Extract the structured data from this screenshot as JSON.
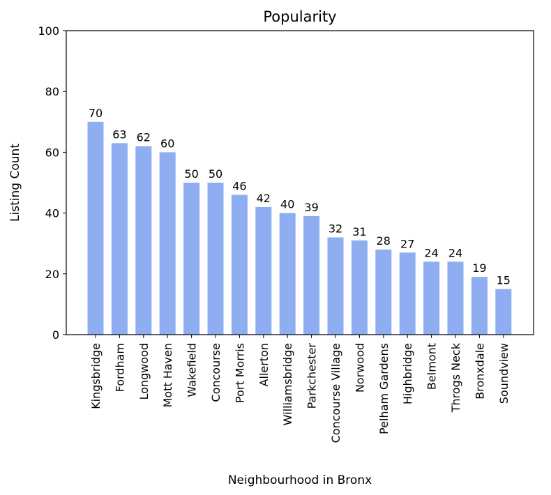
{
  "chart_data": {
    "type": "bar",
    "title": "Popularity",
    "xlabel": "Neighbourhood in Bronx",
    "ylabel": "Listing Count",
    "ylim": [
      0,
      100
    ],
    "yticks": [
      "0",
      "20",
      "40",
      "60",
      "80",
      "100"
    ],
    "grid": false,
    "bar_color": "#8eaef1",
    "categories": [
      "Kingsbridge",
      "Fordham",
      "Longwood",
      "Mott Haven",
      "Wakefield",
      "Concourse",
      "Port Morris",
      "Allerton",
      "Williamsbridge",
      "Parkchester",
      "Concourse Village",
      "Norwood",
      "Pelham Gardens",
      "Highbridge",
      "Belmont",
      "Throgs Neck",
      "Bronxdale",
      "Soundview"
    ],
    "values": [
      70,
      63,
      62,
      60,
      50,
      50,
      46,
      42,
      40,
      39,
      32,
      31,
      28,
      27,
      24,
      24,
      19,
      15
    ],
    "value_labels": [
      "70",
      "63",
      "62",
      "60",
      "50",
      "50",
      "46",
      "42",
      "40",
      "39",
      "32",
      "31",
      "28",
      "27",
      "24",
      "24",
      "19",
      "15"
    ]
  }
}
